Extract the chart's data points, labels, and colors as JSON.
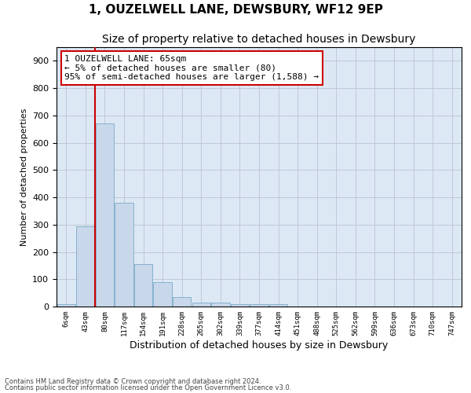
{
  "title": "1, OUZELWELL LANE, DEWSBURY, WF12 9EP",
  "subtitle": "Size of property relative to detached houses in Dewsbury",
  "xlabel": "Distribution of detached houses by size in Dewsbury",
  "ylabel": "Number of detached properties",
  "bin_labels": [
    "6sqm",
    "43sqm",
    "80sqm",
    "117sqm",
    "154sqm",
    "191sqm",
    "228sqm",
    "265sqm",
    "302sqm",
    "339sqm",
    "377sqm",
    "414sqm",
    "451sqm",
    "488sqm",
    "525sqm",
    "562sqm",
    "599sqm",
    "636sqm",
    "673sqm",
    "710sqm",
    "747sqm"
  ],
  "bar_values": [
    8,
    295,
    670,
    380,
    155,
    90,
    35,
    15,
    13,
    10,
    10,
    8,
    0,
    0,
    0,
    0,
    0,
    0,
    0,
    0,
    0
  ],
  "bar_color": "#c8d8ea",
  "bar_edgecolor": "#7aaac8",
  "vline_x": 1.5,
  "vline_color": "#cc0000",
  "annotation_line1": "1 OUZELWELL LANE: 65sqm",
  "annotation_line2": "← 5% of detached houses are smaller (80)",
  "annotation_line3": "95% of semi-detached houses are larger (1,588) →",
  "annotation_box_color": "#ffffff",
  "annotation_box_edgecolor": "#cc0000",
  "ylim": [
    0,
    950
  ],
  "yticks": [
    0,
    100,
    200,
    300,
    400,
    500,
    600,
    700,
    800,
    900
  ],
  "grid_color": "#c0c8d8",
  "bg_color": "#dce8f4",
  "footer1": "Contains HM Land Registry data © Crown copyright and database right 2024.",
  "footer2": "Contains public sector information licensed under the Open Government Licence v3.0.",
  "title_fontsize": 11,
  "subtitle_fontsize": 10,
  "xlabel_fontsize": 9,
  "ylabel_fontsize": 8,
  "annot_fontsize": 8
}
